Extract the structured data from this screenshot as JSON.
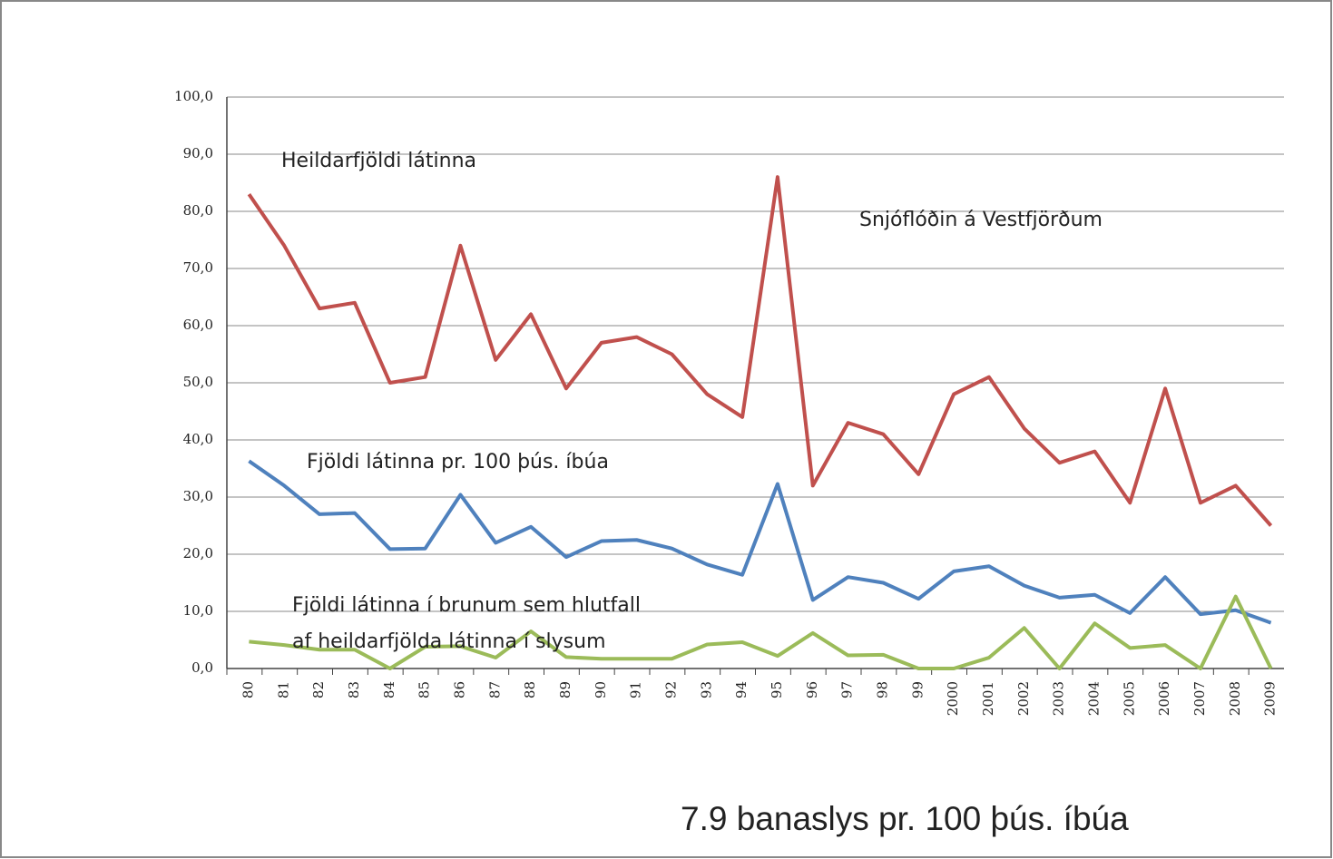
{
  "chart_data": {
    "type": "line",
    "categories": [
      "80",
      "81",
      "82",
      "83",
      "84",
      "85",
      "86",
      "87",
      "88",
      "89",
      "90",
      "91",
      "92",
      "93",
      "94",
      "95",
      "96",
      "97",
      "98",
      "99",
      "2000",
      "2001",
      "2002",
      "2003",
      "2004",
      "2005",
      "2006",
      "2007",
      "2008",
      "2009"
    ],
    "series": [
      {
        "color": "#c0504d",
        "values": [
          83,
          74,
          63,
          64,
          50,
          51,
          74,
          54,
          62,
          49,
          57,
          58,
          55,
          48,
          44,
          86,
          32,
          43,
          41,
          34,
          48,
          51,
          42,
          36,
          38,
          29,
          49,
          29,
          32,
          25
        ]
      },
      {
        "color": "#4f81bd",
        "values": [
          36.3,
          32,
          27,
          27.2,
          20.9,
          21,
          30.4,
          22,
          24.8,
          19.5,
          22.3,
          22.5,
          21,
          18.2,
          16.4,
          32.3,
          12,
          16,
          15,
          12.2,
          17,
          17.9,
          14.5,
          12.4,
          12.9,
          9.7,
          16,
          9.5,
          10.2,
          8
        ]
      },
      {
        "color": "#9bbb59",
        "values": [
          4.7,
          4.1,
          3.3,
          3.3,
          0,
          3.8,
          3.9,
          1.9,
          6.5,
          2,
          1.7,
          1.7,
          1.7,
          4.2,
          4.6,
          2.2,
          6.2,
          2.3,
          2.4,
          0,
          0,
          1.9,
          7.1,
          0,
          7.9,
          3.6,
          4.1,
          0,
          12.6,
          0
        ]
      }
    ],
    "ylim": [
      0,
      100
    ],
    "yticks": [
      {
        "value": 0,
        "label": "0,0"
      },
      {
        "value": 10,
        "label": "10,0"
      },
      {
        "value": 20,
        "label": "20,0"
      },
      {
        "value": 30,
        "label": "30,0"
      },
      {
        "value": 40,
        "label": "40,0"
      },
      {
        "value": 50,
        "label": "50,0"
      },
      {
        "value": 60,
        "label": "60,0"
      },
      {
        "value": 70,
        "label": "70,0"
      },
      {
        "value": 80,
        "label": "80,0"
      },
      {
        "value": 90,
        "label": "90,0"
      },
      {
        "value": 100,
        "label": "100,0"
      }
    ],
    "grid": true,
    "annotations": [
      "Heildarfjöldi látinna",
      "Snjóflóðin á Vestfjörðum",
      "Fjöldi látinna pr. 100 þús. íbúa",
      "Fjöldi látinna í brunum sem hlutfall",
      "af heildarfjölda látinna í slysum"
    ],
    "footer": "7.9 banaslys pr. 100 þús. íbúa"
  }
}
